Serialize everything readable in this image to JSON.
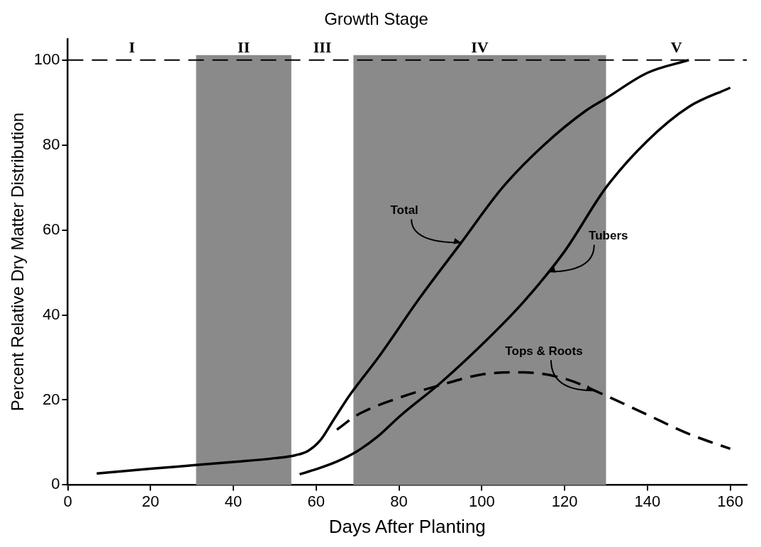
{
  "chart_data": {
    "type": "line",
    "title": "Growth Stage",
    "xlabel": "Days After Planting",
    "ylabel": "Percent Relative Dry Matter Distribution",
    "xlim": [
      0,
      164
    ],
    "xticks": [
      0,
      20,
      40,
      60,
      80,
      100,
      120,
      140,
      160
    ],
    "ylim": [
      0,
      105
    ],
    "yticks": [
      0,
      20,
      40,
      60,
      80,
      100
    ],
    "grid": false,
    "legend": false,
    "marker": "none",
    "series": [
      {
        "color": "#000000",
        "line_style": "solid",
        "x": [
          7,
          20,
          30,
          40,
          50,
          55,
          58,
          61,
          64,
          68,
          75,
          85,
          95,
          105,
          115,
          125,
          130,
          140,
          150
        ],
        "values": [
          2.7,
          3.8,
          4.6,
          5.4,
          6.3,
          7,
          8,
          10.5,
          15,
          21,
          30,
          44,
          57,
          70,
          80,
          88,
          91,
          97,
          100
        ]
      },
      {
        "color": "#000000",
        "line_style": "solid",
        "x": [
          56,
          60,
          65,
          70,
          75,
          80,
          90,
          100,
          110,
          120,
          130,
          140,
          150,
          160
        ],
        "values": [
          2.5,
          3.7,
          5.5,
          8,
          11.5,
          16,
          24,
          33,
          43,
          55,
          70,
          81,
          89,
          93.5
        ]
      },
      {
        "color": "#000000",
        "line_style": "dashed",
        "x": [
          65,
          70,
          80,
          90,
          100,
          110,
          120,
          130,
          140,
          150,
          160
        ],
        "values": [
          13,
          16.5,
          20.5,
          23.5,
          26,
          26.5,
          25,
          21,
          16.5,
          12,
          8.5
        ]
      }
    ],
    "ref_lines": [
      {
        "axis": "y",
        "value": 100,
        "line_style": "dashed",
        "color": "#000000"
      }
    ],
    "bands": [
      {
        "axis": "x",
        "from": 31,
        "to": 54,
        "label": "II",
        "color": "#8a8a8a"
      },
      {
        "axis": "x",
        "from": 69,
        "to": 130,
        "label": "IV",
        "color": "#8a8a8a"
      }
    ],
    "annotations": [
      "I",
      "III",
      "V",
      {
        "text": "Total",
        "x": 95,
        "y": 57
      },
      {
        "text": "Tubers",
        "x": 116,
        "y": 50.2
      },
      {
        "text": "Tops & Roots",
        "x": 127,
        "y": 22.2
      }
    ]
  }
}
